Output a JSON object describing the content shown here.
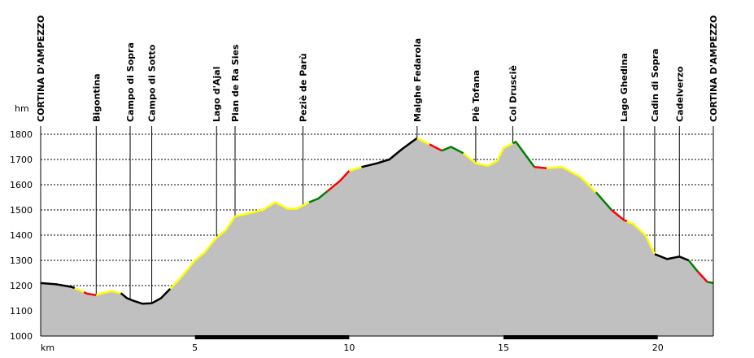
{
  "chart_data": {
    "type": "area",
    "title": "",
    "xlabel": "",
    "ylabel": "hm",
    "x_unit_label": "km",
    "xlim": [
      0,
      21.8
    ],
    "ylim": [
      1000,
      1800
    ],
    "grid": true,
    "x_ticks": [
      5,
      10,
      15,
      20
    ],
    "y_ticks": [
      1000,
      1100,
      1200,
      1300,
      1400,
      1500,
      1600,
      1700,
      1800
    ],
    "colors": {
      "fill": "#c0c0c0",
      "flat": "#000000",
      "gentle": "#ffff00",
      "moderate": "#008000",
      "steep": "#ff0000"
    },
    "waypoints": [
      {
        "name": "CORTINA D'AMPEZZO",
        "km": 0.0,
        "ele": 1210
      },
      {
        "name": "Bigontina",
        "km": 1.8,
        "ele": 1160
      },
      {
        "name": "Campo di Sopra",
        "km": 2.9,
        "ele": 1145
      },
      {
        "name": "Campo di Sotto",
        "km": 3.6,
        "ele": 1140
      },
      {
        "name": "Lago d'Ajal",
        "km": 5.7,
        "ele": 1410
      },
      {
        "name": "Pian de Ra Sies",
        "km": 6.3,
        "ele": 1480
      },
      {
        "name": "Peziè de Parù",
        "km": 8.5,
        "ele": 1525
      },
      {
        "name": "Malghe Fedarola",
        "km": 12.2,
        "ele": 1780
      },
      {
        "name": "Piè Tofana",
        "km": 14.1,
        "ele": 1680
      },
      {
        "name": "Col Drusciè",
        "km": 15.3,
        "ele": 1775
      },
      {
        "name": "Lago Ghedina",
        "km": 18.9,
        "ele": 1460
      },
      {
        "name": "Cadin di Sopra",
        "km": 19.9,
        "ele": 1325
      },
      {
        "name": "Cadelverzo",
        "km": 20.7,
        "ele": 1310
      },
      {
        "name": "CORTINA D'AMPEZZO",
        "km": 21.8,
        "ele": 1210
      }
    ],
    "profile": [
      [
        0.0,
        1210
      ],
      [
        0.5,
        1205
      ],
      [
        1.0,
        1195
      ],
      [
        1.3,
        1180
      ],
      [
        1.5,
        1168
      ],
      [
        1.8,
        1162
      ],
      [
        2.0,
        1170
      ],
      [
        2.3,
        1178
      ],
      [
        2.6,
        1170
      ],
      [
        2.8,
        1150
      ],
      [
        3.0,
        1140
      ],
      [
        3.3,
        1128
      ],
      [
        3.6,
        1130
      ],
      [
        3.9,
        1150
      ],
      [
        4.3,
        1200
      ],
      [
        4.6,
        1240
      ],
      [
        5.0,
        1300
      ],
      [
        5.3,
        1330
      ],
      [
        5.7,
        1390
      ],
      [
        6.0,
        1420
      ],
      [
        6.3,
        1475
      ],
      [
        6.7,
        1485
      ],
      [
        7.2,
        1500
      ],
      [
        7.6,
        1530
      ],
      [
        8.0,
        1505
      ],
      [
        8.3,
        1505
      ],
      [
        8.7,
        1530
      ],
      [
        9.0,
        1545
      ],
      [
        9.3,
        1575
      ],
      [
        9.7,
        1615
      ],
      [
        10.0,
        1655
      ],
      [
        10.4,
        1670
      ],
      [
        10.9,
        1685
      ],
      [
        11.3,
        1700
      ],
      [
        11.7,
        1740
      ],
      [
        12.2,
        1785
      ],
      [
        12.6,
        1760
      ],
      [
        13.0,
        1735
      ],
      [
        13.3,
        1750
      ],
      [
        13.7,
        1725
      ],
      [
        14.1,
        1685
      ],
      [
        14.5,
        1675
      ],
      [
        14.8,
        1695
      ],
      [
        15.0,
        1745
      ],
      [
        15.4,
        1770
      ],
      [
        15.7,
        1720
      ],
      [
        16.0,
        1670
      ],
      [
        16.4,
        1665
      ],
      [
        16.9,
        1670
      ],
      [
        17.5,
        1630
      ],
      [
        18.0,
        1570
      ],
      [
        18.5,
        1500
      ],
      [
        18.9,
        1460
      ],
      [
        19.2,
        1445
      ],
      [
        19.6,
        1400
      ],
      [
        19.9,
        1325
      ],
      [
        20.3,
        1305
      ],
      [
        20.7,
        1315
      ],
      [
        21.0,
        1300
      ],
      [
        21.3,
        1255
      ],
      [
        21.6,
        1215
      ],
      [
        21.8,
        1210
      ]
    ],
    "segments": [
      {
        "from": 0.0,
        "to": 1.1,
        "grade": "flat"
      },
      {
        "from": 1.1,
        "to": 1.4,
        "grade": "gentle"
      },
      {
        "from": 1.4,
        "to": 1.8,
        "grade": "steep"
      },
      {
        "from": 1.8,
        "to": 2.6,
        "grade": "gentle"
      },
      {
        "from": 2.6,
        "to": 3.6,
        "grade": "flat"
      },
      {
        "from": 3.6,
        "to": 4.2,
        "grade": "flat"
      },
      {
        "from": 4.2,
        "to": 6.3,
        "grade": "gentle"
      },
      {
        "from": 6.3,
        "to": 8.7,
        "grade": "gentle"
      },
      {
        "from": 8.7,
        "to": 9.3,
        "grade": "moderate"
      },
      {
        "from": 9.3,
        "to": 10.0,
        "grade": "steep"
      },
      {
        "from": 10.0,
        "to": 10.4,
        "grade": "gentle"
      },
      {
        "from": 10.4,
        "to": 12.2,
        "grade": "flat"
      },
      {
        "from": 12.2,
        "to": 12.6,
        "grade": "gentle"
      },
      {
        "from": 12.6,
        "to": 13.0,
        "grade": "steep"
      },
      {
        "from": 13.0,
        "to": 13.7,
        "grade": "moderate"
      },
      {
        "from": 13.7,
        "to": 15.3,
        "grade": "gentle"
      },
      {
        "from": 15.3,
        "to": 16.0,
        "grade": "moderate"
      },
      {
        "from": 16.0,
        "to": 16.4,
        "grade": "steep"
      },
      {
        "from": 16.4,
        "to": 18.0,
        "grade": "gentle"
      },
      {
        "from": 18.0,
        "to": 18.5,
        "grade": "moderate"
      },
      {
        "from": 18.5,
        "to": 19.0,
        "grade": "steep"
      },
      {
        "from": 19.0,
        "to": 19.9,
        "grade": "gentle"
      },
      {
        "from": 19.9,
        "to": 21.0,
        "grade": "flat"
      },
      {
        "from": 21.0,
        "to": 21.3,
        "grade": "moderate"
      },
      {
        "from": 21.3,
        "to": 21.6,
        "grade": "steep"
      },
      {
        "from": 21.6,
        "to": 21.8,
        "grade": "moderate"
      }
    ]
  }
}
